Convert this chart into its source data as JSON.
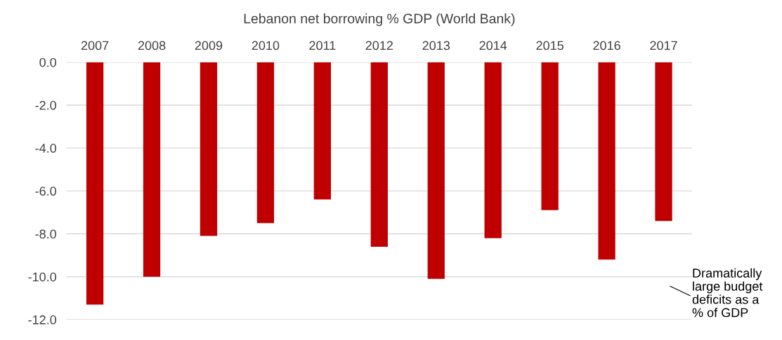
{
  "chart_data": {
    "type": "bar",
    "title": "Lebanon net borrowing % GDP (World Bank)",
    "categories": [
      "2007",
      "2008",
      "2009",
      "2010",
      "2011",
      "2012",
      "2013",
      "2014",
      "2015",
      "2016",
      "2017"
    ],
    "values": [
      -11.3,
      -10.0,
      -8.1,
      -7.5,
      -6.4,
      -8.6,
      -10.1,
      -8.2,
      -6.9,
      -9.2,
      -7.4
    ],
    "color": "#c00000",
    "ylim": [
      -12.0,
      0.0
    ],
    "yticks": [
      {
        "value": 0,
        "label": "0.0"
      },
      {
        "value": -2,
        "label": "-2.0"
      },
      {
        "value": -4,
        "label": "-4.0"
      },
      {
        "value": -6,
        "label": "-6.0"
      },
      {
        "value": -8,
        "label": "-8.0"
      },
      {
        "value": -10,
        "label": "-10.0"
      },
      {
        "value": -12,
        "label": "-12.0"
      }
    ],
    "grid": "y",
    "annotations": [
      "Dramatically\nlarge budget\ndeficits as a\n% of GDP"
    ]
  }
}
